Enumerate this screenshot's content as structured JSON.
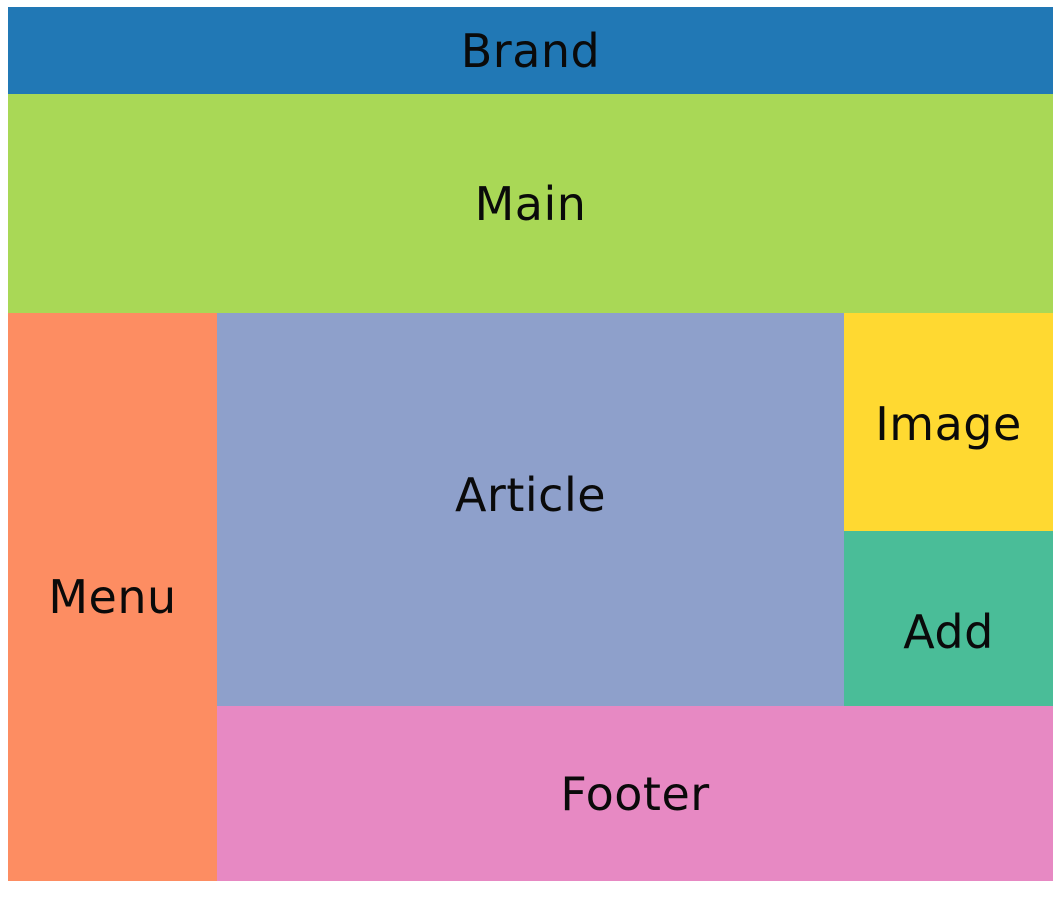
{
  "regions": {
    "brand": {
      "label": "Brand",
      "color": "#2178b5"
    },
    "main": {
      "label": "Main",
      "color": "#a9d856"
    },
    "menu": {
      "label": "Menu",
      "color": "#fd8d62"
    },
    "article": {
      "label": "Article",
      "color": "#8ea0cb"
    },
    "image": {
      "label": "Image",
      "color": "#ffd931"
    },
    "add": {
      "label": "Add",
      "color": "#4abd98"
    },
    "footer": {
      "label": "Footer",
      "color": "#e789c3"
    }
  }
}
